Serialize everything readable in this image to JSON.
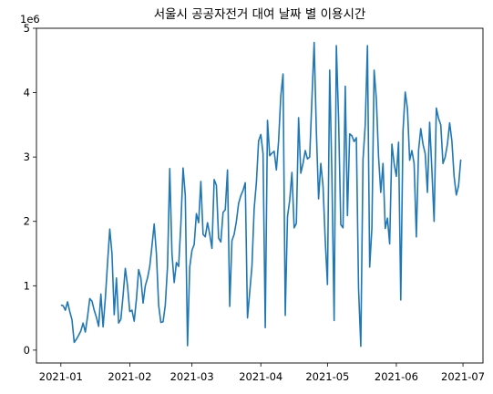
{
  "chart_data": {
    "type": "line",
    "title": "서울시 공공자전거 대여 날짜 별 이용시간",
    "xlabel": "",
    "ylabel": "",
    "y_offset_label": "1e6",
    "xlim": [
      "2020-12-21",
      "2021-07-10"
    ],
    "ylim": [
      -200000,
      5000000
    ],
    "x_ticks": [
      {
        "date": "2021-01-01",
        "label": "2021-01"
      },
      {
        "date": "2021-02-01",
        "label": "2021-02"
      },
      {
        "date": "2021-03-01",
        "label": "2021-03"
      },
      {
        "date": "2021-04-01",
        "label": "2021-04"
      },
      {
        "date": "2021-05-01",
        "label": "2021-05"
      },
      {
        "date": "2021-06-01",
        "label": "2021-06"
      },
      {
        "date": "2021-07-01",
        "label": "2021-07"
      }
    ],
    "y_ticks": [
      {
        "value": 0,
        "label": "0"
      },
      {
        "value": 1000000,
        "label": "1"
      },
      {
        "value": 2000000,
        "label": "2"
      },
      {
        "value": 3000000,
        "label": "3"
      },
      {
        "value": 4000000,
        "label": "4"
      },
      {
        "value": 5000000,
        "label": "5"
      }
    ],
    "grid": false,
    "legend": "none",
    "series": [
      {
        "color": "#1f77b4",
        "start_date": "2021-01-01",
        "frequency": "daily",
        "values": [
          700000,
          690000,
          620000,
          750000,
          600000,
          470000,
          120000,
          170000,
          230000,
          300000,
          420000,
          280000,
          520000,
          800000,
          760000,
          620000,
          510000,
          370000,
          870000,
          360000,
          800000,
          1350000,
          1880000,
          1500000,
          550000,
          1120000,
          420000,
          480000,
          850000,
          1270000,
          1000000,
          600000,
          620000,
          450000,
          790000,
          1250000,
          1120000,
          730000,
          1000000,
          1120000,
          1300000,
          1620000,
          1960000,
          1500000,
          700000,
          430000,
          440000,
          700000,
          1300000,
          2820000,
          1500000,
          1050000,
          1360000,
          1300000,
          1950000,
          2830000,
          2400000,
          70000,
          1290000,
          1550000,
          1640000,
          2120000,
          1980000,
          2620000,
          1800000,
          1760000,
          1980000,
          1800000,
          1580000,
          2650000,
          2560000,
          1740000,
          1680000,
          2140000,
          2180000,
          2800000,
          680000,
          1700000,
          1800000,
          2000000,
          2280000,
          2400000,
          2480000,
          2600000,
          500000,
          900000,
          1300000,
          2200000,
          2600000,
          3250000,
          3350000,
          3050000,
          350000,
          3570000,
          3020000,
          3060000,
          3090000,
          2800000,
          3250000,
          3950000,
          4290000,
          540000,
          2070000,
          2330000,
          2760000,
          1900000,
          1970000,
          3610000,
          2750000,
          2900000,
          3100000,
          2970000,
          3000000,
          3900000,
          4780000,
          3400000,
          2350000,
          2900000,
          2550000,
          1700000,
          1020000,
          4350000,
          2700000,
          460000,
          4730000,
          3600000,
          1950000,
          1900000,
          4100000,
          2090000,
          3360000,
          3330000,
          3240000,
          3300000,
          950000,
          60000,
          2960000,
          3500000,
          4730000,
          1290000,
          1900000,
          4350000,
          3900000,
          3000000,
          2450000,
          2900000,
          1890000,
          2050000,
          1650000,
          3200000,
          2900000,
          2700000,
          3230000,
          780000,
          3400000,
          4010000,
          3750000,
          2950000,
          3100000,
          2900000,
          1760000,
          3100000,
          3440000,
          3200000,
          3050000,
          2450000,
          3540000,
          2800000,
          2000000,
          3760000,
          3600000,
          3500000,
          2900000,
          3000000,
          3200000,
          3530000,
          3250000,
          2700000,
          2410000,
          2550000,
          2960000
        ]
      }
    ]
  }
}
